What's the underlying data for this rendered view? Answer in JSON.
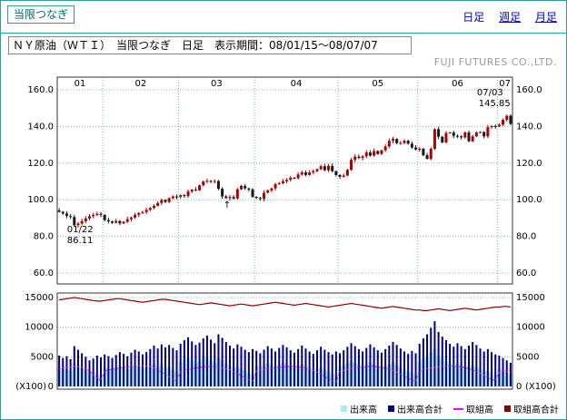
{
  "header": {
    "corner_label": "当限つなぎ",
    "nav": [
      {
        "label": "日足",
        "active": true
      },
      {
        "label": "週足",
        "active": false
      },
      {
        "label": "月足",
        "active": false
      }
    ]
  },
  "title_bar": {
    "title": "ＮＹ原油（ＷＴＩ）　当限つなぎ　日足　表示期間：08/01/15～08/07/07",
    "company": "FUJI FUTURES CO.,LTD."
  },
  "chart_data": {
    "type": "candlestick+volume",
    "price_axis": {
      "ticks": [
        "160.0",
        "140.0",
        "120.0",
        "100.0",
        "80.0",
        "60.0"
      ],
      "min": 60,
      "max": 160
    },
    "volume_axis": {
      "ticks": [
        "15000",
        "10000",
        "5000",
        "0"
      ],
      "min": 0,
      "max": 15000,
      "unit": "(X100)"
    },
    "months": {
      "labels": [
        "01",
        "02",
        "03",
        "04",
        "05",
        "06",
        "07"
      ],
      "start_indices": [
        0,
        12,
        32,
        52,
        74,
        95,
        116
      ]
    },
    "closes": [
      93.4,
      92.5,
      91.1,
      90.6,
      86.11,
      87.0,
      88.3,
      89.8,
      91.0,
      91.6,
      92.3,
      91.7,
      88.9,
      88.2,
      87.4,
      88.4,
      87.1,
      88.0,
      89.4,
      90.3,
      91.8,
      92.8,
      93.3,
      94.5,
      95.5,
      96.7,
      98.2,
      99.9,
      98.8,
      100.9,
      101.8,
      101.6,
      102.5,
      102.0,
      104.5,
      105.5,
      105.2,
      107.9,
      109.9,
      110.3,
      109.8,
      110.2,
      106.0,
      101.8,
      100.9,
      101.5,
      100.7,
      105.7,
      107.6,
      106.2,
      105.6,
      101.6,
      100.98,
      100.5,
      103.8,
      105.1,
      106.2,
      108.5,
      109.0,
      110.1,
      110.9,
      112.0,
      111.8,
      113.8,
      114.9,
      113.5,
      114.9,
      115.6,
      116.7,
      118.3,
      116.1,
      118.5,
      115.6,
      113.5,
      112.5,
      113.2,
      116.3,
      121.8,
      123.5,
      122.8,
      123.7,
      125.8,
      124.1,
      126.6,
      125.0,
      127.0,
      129.1,
      132.2,
      133.2,
      130.9,
      131.0,
      132.2,
      130.6,
      128.5,
      127.4,
      127.8,
      124.3,
      122.3,
      127.8,
      138.5,
      134.4,
      131.3,
      136.4,
      136.7,
      134.9,
      134.6,
      134.0,
      136.7,
      131.9,
      134.6,
      136.7,
      137.0,
      134.6,
      139.6,
      140.2,
      140.0,
      141.0,
      143.6,
      145.85,
      141.4
    ],
    "volume": [
      3100,
      2800,
      2900,
      2600,
      3900,
      3500,
      3100,
      2700,
      2300,
      2400,
      2100,
      1800,
      3200,
      3000,
      2800,
      3100,
      3400,
      3200,
      2900,
      3300,
      3600,
      3400,
      3000,
      3200,
      3400,
      3700,
      3300,
      3600,
      3200,
      3300,
      2800,
      2400,
      4200,
      4500,
      4800,
      4400,
      4000,
      4200,
      4600,
      4900,
      4400,
      4000,
      4800,
      4400,
      3900,
      3500,
      3100,
      3400,
      3000,
      2600,
      2200,
      2000,
      3500,
      3200,
      3600,
      3900,
      3700,
      3400,
      3700,
      4000,
      3700,
      3400,
      3100,
      3400,
      3700,
      3400,
      3100,
      2800,
      3000,
      3200,
      2800,
      2500,
      2100,
      1900,
      3300,
      3600,
      3900,
      4300,
      4000,
      3700,
      3400,
      3700,
      4100,
      3700,
      3400,
      3100,
      3400,
      3700,
      4000,
      3600,
      3200,
      2900,
      2500,
      2200,
      1900,
      4200,
      4700,
      5100,
      5700,
      6300,
      5200,
      4700,
      4300,
      3900,
      3600,
      3800,
      3500,
      3200,
      3400,
      3600,
      3300,
      2900,
      2600,
      2600,
      2300,
      2000,
      2900,
      2600,
      2300,
      2000
    ],
    "volume_total": [
      5200,
      4800,
      5100,
      4600,
      6800,
      6200,
      5600,
      5000,
      4400,
      4700,
      5200,
      4900,
      5400,
      5100,
      4800,
      5300,
      5800,
      5500,
      5100,
      5700,
      6200,
      5900,
      5400,
      5800,
      6300,
      6900,
      6400,
      7100,
      6600,
      7000,
      6500,
      6100,
      7200,
      7800,
      8300,
      7600,
      7000,
      7400,
      8100,
      8600,
      7900,
      7300,
      8800,
      8200,
      7500,
      6900,
      6400,
      7100,
      6700,
      6200,
      5800,
      6300,
      6000,
      5600,
      6200,
      6800,
      6400,
      5900,
      6500,
      7000,
      6600,
      6100,
      5700,
      6300,
      6900,
      6400,
      5900,
      5500,
      6100,
      6700,
      6200,
      5800,
      5400,
      5900,
      5600,
      6100,
      6700,
      7300,
      6800,
      6300,
      5900,
      6500,
      7100,
      6600,
      6100,
      5700,
      6300,
      6900,
      7500,
      7000,
      6400,
      5900,
      5500,
      6000,
      5600,
      7200,
      8100,
      8800,
      9900,
      11000,
      9200,
      8400,
      7800,
      7200,
      6700,
      7300,
      6800,
      6300,
      6900,
      7500,
      7000,
      6400,
      5900,
      6300,
      5800,
      5400,
      5200,
      4800,
      4400,
      4000
    ],
    "open_interest": [
      3000,
      3100,
      3200,
      3300,
      3400,
      3300,
      3200,
      3000,
      2600,
      2000,
      1400,
      1000,
      2600,
      2800,
      2900,
      3000,
      3100,
      3200,
      3300,
      3400,
      3400,
      3500,
      3500,
      3400,
      3300,
      3100,
      2800,
      2400,
      2000,
      1600,
      1200,
      900,
      2500,
      2700,
      2900,
      3000,
      3100,
      3200,
      3300,
      3300,
      3400,
      3400,
      3300,
      3200,
      3000,
      2800,
      2500,
      2200,
      1800,
      1400,
      1100,
      900,
      2600,
      2800,
      2900,
      3000,
      3100,
      3200,
      3200,
      3300,
      3300,
      3400,
      3400,
      3300,
      3200,
      3100,
      2900,
      2700,
      2400,
      2100,
      1700,
      1300,
      1000,
      800,
      2500,
      2700,
      2900,
      3000,
      3100,
      3200,
      3300,
      3300,
      3400,
      3400,
      3300,
      3200,
      3100,
      2900,
      2700,
      2400,
      2100,
      1800,
      1400,
      1100,
      900,
      2600,
      2800,
      3000,
      3100,
      3200,
      3300,
      3400,
      3400,
      3500,
      3400,
      3400,
      3300,
      3200,
      3000,
      2800,
      2500,
      2200,
      1900,
      1500,
      1200,
      1000,
      2400,
      2600,
      2700,
      2800
    ],
    "open_interest_total": [
      14600,
      14700,
      14800,
      14900,
      15000,
      14900,
      14800,
      14700,
      14600,
      14500,
      14400,
      14400,
      14500,
      14600,
      14700,
      14800,
      14800,
      14700,
      14600,
      14500,
      14400,
      14300,
      14200,
      14300,
      14400,
      14500,
      14600,
      14700,
      14700,
      14600,
      14500,
      14400,
      14300,
      14200,
      14100,
      14000,
      13900,
      13800,
      13900,
      14000,
      14100,
      14000,
      13900,
      13800,
      13700,
      13600,
      13700,
      13800,
      13900,
      13800,
      13700,
      13600,
      13700,
      13800,
      13900,
      14000,
      14100,
      14200,
      14100,
      14000,
      13900,
      13800,
      13700,
      13800,
      13900,
      14000,
      13900,
      13800,
      13700,
      13600,
      13500,
      13400,
      13500,
      13600,
      13700,
      13800,
      13900,
      14000,
      13900,
      13800,
      13700,
      13600,
      13500,
      13400,
      13300,
      13200,
      13300,
      13400,
      13500,
      13400,
      13300,
      13200,
      13100,
      13000,
      12900,
      12900,
      12800,
      12800,
      12900,
      13000,
      13100,
      13000,
      12900,
      12800,
      12900,
      13000,
      13100,
      13200,
      13100,
      13000,
      12900,
      13000,
      13100,
      13200,
      13300,
      13400,
      13400,
      13500,
      13500,
      13400
    ],
    "annotations": {
      "high": {
        "date": "07/03",
        "price": "145.85",
        "day": 118
      },
      "low": {
        "date": "01/22",
        "price": "86.11",
        "day": 4
      },
      "arrow": {
        "symbol": "↑",
        "day": 44
      }
    },
    "colors": {
      "up": "#aa0000",
      "down": "#1a1a1a",
      "volume": "#aeeaea",
      "volume_total": "#000080",
      "open_interest": "#ff00ff",
      "open_interest_total": "#8b0000"
    },
    "legend": [
      {
        "label": "出来高",
        "color": "#aeeaea",
        "marker": "square"
      },
      {
        "label": "出来高合計",
        "color": "#000080",
        "marker": "square"
      },
      {
        "label": "取組高",
        "color": "#ff00ff",
        "marker": "line"
      },
      {
        "label": "取組高合計",
        "color": "#8b0000",
        "marker": "square"
      }
    ]
  }
}
